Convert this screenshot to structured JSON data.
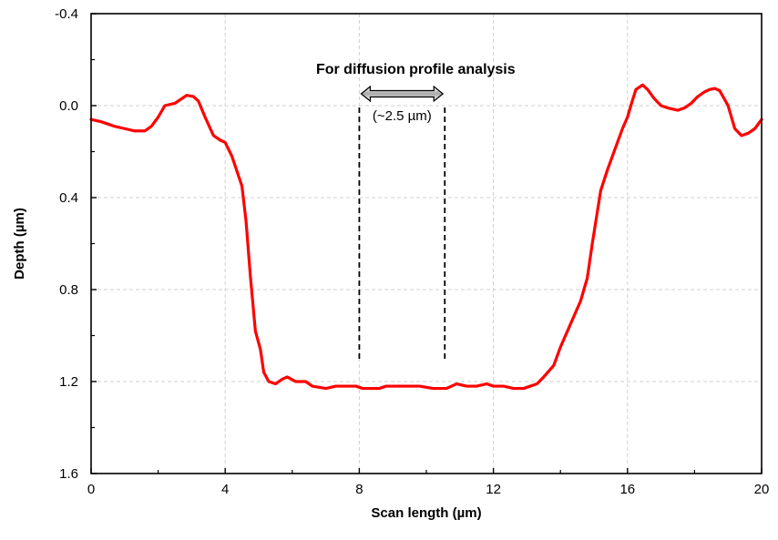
{
  "chart_data": {
    "type": "line",
    "title": "",
    "xlabel": "Scan length (µm)",
    "ylabel": "Depth (µm)",
    "xlim": [
      0,
      20
    ],
    "ylim": [
      -0.4,
      1.6
    ],
    "y_inverted": true,
    "grid": true,
    "x_ticks": [
      0,
      4,
      8,
      12,
      16,
      20
    ],
    "x_tick_labels": [
      "0",
      "4",
      "8",
      "12",
      "16",
      "20"
    ],
    "y_ticks": [
      -0.4,
      0.0,
      0.4,
      0.8,
      1.2,
      1.6
    ],
    "y_tick_labels": [
      "-0.4",
      "0.0",
      "0.4",
      "0.8",
      "1.2",
      "1.6"
    ],
    "line_color": "#ff0000",
    "annotations": {
      "region_label": "For diffusion profile analysis",
      "width_label": "(~2.5 µm)",
      "region_x": [
        8.0,
        10.55
      ]
    },
    "series": [
      {
        "color": "#ff0000",
        "x": [
          0,
          0.3,
          0.7,
          1.0,
          1.3,
          1.6,
          1.8,
          2.0,
          2.2,
          2.5,
          2.7,
          2.85,
          3.05,
          3.2,
          3.4,
          3.65,
          3.85,
          4.0,
          4.2,
          4.5,
          4.62,
          4.75,
          4.9,
          5.05,
          5.15,
          5.3,
          5.5,
          5.7,
          5.85,
          6.1,
          6.4,
          6.6,
          7.0,
          7.3,
          7.6,
          7.9,
          8.1,
          8.3,
          8.6,
          8.8,
          9.0,
          9.4,
          9.8,
          10.2,
          10.6,
          10.9,
          11.2,
          11.5,
          11.8,
          12.0,
          12.3,
          12.6,
          12.9,
          13.1,
          13.3,
          13.5,
          13.8,
          14.0,
          14.3,
          14.6,
          14.8,
          14.95,
          15.2,
          15.4,
          15.6,
          15.85,
          16.0,
          16.1,
          16.25,
          16.45,
          16.6,
          16.8,
          17.0,
          17.2,
          17.5,
          17.7,
          17.9,
          18.1,
          18.3,
          18.45,
          18.6,
          18.75,
          19.0,
          19.2,
          19.4,
          19.6,
          19.8,
          20.0
        ],
        "y": [
          0.06,
          0.07,
          0.09,
          0.1,
          0.11,
          0.11,
          0.09,
          0.05,
          0.0,
          -0.01,
          -0.03,
          -0.045,
          -0.04,
          -0.02,
          0.05,
          0.13,
          0.15,
          0.16,
          0.22,
          0.35,
          0.5,
          0.74,
          0.98,
          1.06,
          1.16,
          1.2,
          1.21,
          1.19,
          1.18,
          1.2,
          1.2,
          1.22,
          1.23,
          1.22,
          1.22,
          1.22,
          1.23,
          1.23,
          1.23,
          1.22,
          1.22,
          1.22,
          1.22,
          1.23,
          1.23,
          1.21,
          1.22,
          1.22,
          1.21,
          1.22,
          1.22,
          1.23,
          1.23,
          1.22,
          1.21,
          1.18,
          1.13,
          1.05,
          0.95,
          0.85,
          0.75,
          0.6,
          0.37,
          0.28,
          0.2,
          0.1,
          0.05,
          0.0,
          -0.07,
          -0.09,
          -0.07,
          -0.03,
          0.0,
          0.01,
          0.02,
          0.01,
          -0.01,
          -0.04,
          -0.06,
          -0.07,
          -0.075,
          -0.065,
          0.0,
          0.1,
          0.13,
          0.12,
          0.1,
          0.06
        ]
      }
    ]
  }
}
